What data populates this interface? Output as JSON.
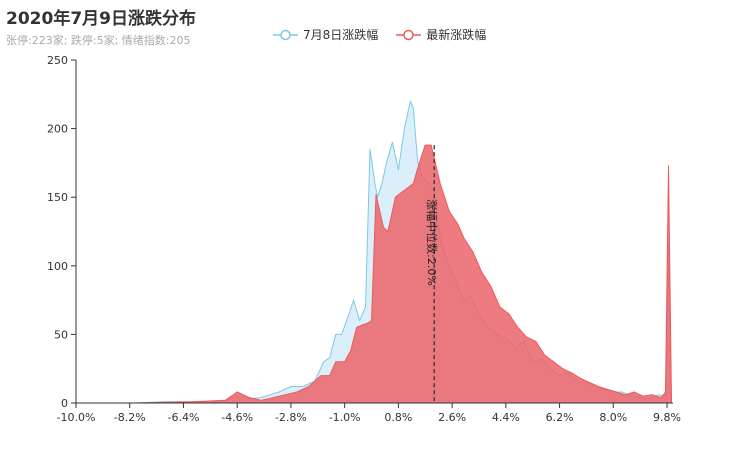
{
  "chart_data": {
    "type": "area",
    "title": "2020年7月9日涨跌分布",
    "subtitle": "张停:223家; 跌停:5家; 情绪指数:205",
    "legend": [
      {
        "name": "7月8日涨跌幅",
        "color": "#7ec8e3"
      },
      {
        "name": "最新涨跌幅",
        "color": "#ee5a5a"
      }
    ],
    "xlim": [
      -10.0,
      10.0
    ],
    "ylim": [
      0,
      250
    ],
    "xticks": [
      "-10.0%",
      "-8.2%",
      "-6.4%",
      "-4.6%",
      "-2.8%",
      "-1.0%",
      "0.8%",
      "2.6%",
      "4.4%",
      "6.2%",
      "8.0%",
      "9.8%"
    ],
    "xtick_values": [
      -10.0,
      -8.2,
      -6.4,
      -4.6,
      -2.8,
      -1.0,
      0.8,
      2.6,
      4.4,
      6.2,
      8.0,
      9.8
    ],
    "yticks": [
      0,
      50,
      100,
      150,
      200,
      250
    ],
    "series": [
      {
        "name": "7月8日涨跌幅",
        "color": "#7ec8e3",
        "fill": "rgba(175,220,245,0.45)",
        "x": [
          -10.0,
          -8.0,
          -7.0,
          -6.4,
          -5.5,
          -5.0,
          -4.6,
          -4.2,
          -3.8,
          -3.5,
          -3.2,
          -2.8,
          -2.4,
          -2.0,
          -1.7,
          -1.5,
          -1.3,
          -1.1,
          -0.9,
          -0.7,
          -0.5,
          -0.3,
          -0.15,
          0.0,
          0.1,
          0.25,
          0.4,
          0.6,
          0.8,
          1.0,
          1.2,
          1.3,
          1.45,
          1.6,
          1.8,
          2.0,
          2.2,
          2.5,
          2.8,
          3.0,
          3.2,
          3.5,
          3.8,
          4.1,
          4.4,
          4.7,
          5.0,
          5.3,
          5.6,
          5.9,
          6.2,
          6.5,
          6.8,
          7.1,
          7.4,
          7.7,
          8.0,
          8.3,
          8.6,
          8.9,
          9.2,
          9.5,
          9.75,
          9.85,
          9.95
        ],
        "y": [
          0,
          0,
          1,
          1,
          0,
          2,
          5,
          3,
          4,
          6,
          8,
          12,
          12,
          16,
          30,
          33,
          50,
          50,
          62,
          75,
          60,
          70,
          185,
          162,
          150,
          160,
          175,
          190,
          170,
          200,
          220,
          215,
          175,
          165,
          160,
          155,
          120,
          100,
          85,
          75,
          78,
          65,
          55,
          50,
          48,
          40,
          45,
          30,
          32,
          25,
          20,
          22,
          15,
          15,
          12,
          10,
          8,
          8,
          5,
          4,
          3,
          6,
          5,
          115,
          0
        ]
      },
      {
        "name": "最新涨跌幅",
        "color": "#ee5a5a",
        "fill": "rgba(235,100,105,0.85)",
        "x": [
          -10.0,
          -8.0,
          -6.0,
          -5.0,
          -4.6,
          -4.2,
          -3.8,
          -3.0,
          -2.6,
          -2.2,
          -1.8,
          -1.5,
          -1.3,
          -1.0,
          -0.8,
          -0.6,
          -0.4,
          -0.25,
          -0.1,
          0.05,
          0.3,
          0.45,
          0.7,
          1.0,
          1.3,
          1.5,
          1.7,
          1.9,
          2.2,
          2.5,
          2.8,
          3.0,
          3.3,
          3.6,
          3.9,
          4.2,
          4.5,
          4.8,
          5.1,
          5.4,
          5.7,
          6.0,
          6.3,
          6.6,
          6.9,
          7.2,
          7.5,
          7.8,
          8.1,
          8.4,
          8.7,
          9.0,
          9.3,
          9.6,
          9.75,
          9.85,
          9.95
        ],
        "y": [
          0,
          0,
          1,
          2,
          8,
          4,
          2,
          6,
          8,
          12,
          20,
          20,
          30,
          30,
          38,
          55,
          57,
          58,
          60,
          152,
          128,
          125,
          150,
          155,
          160,
          175,
          188,
          188,
          160,
          140,
          130,
          120,
          110,
          95,
          85,
          70,
          65,
          55,
          48,
          45,
          35,
          30,
          25,
          22,
          18,
          15,
          12,
          10,
          8,
          6,
          8,
          5,
          6,
          4,
          8,
          173,
          0
        ]
      }
    ],
    "median_line": {
      "x": 2.0,
      "label": "涨幅中位数:2.0%"
    }
  }
}
